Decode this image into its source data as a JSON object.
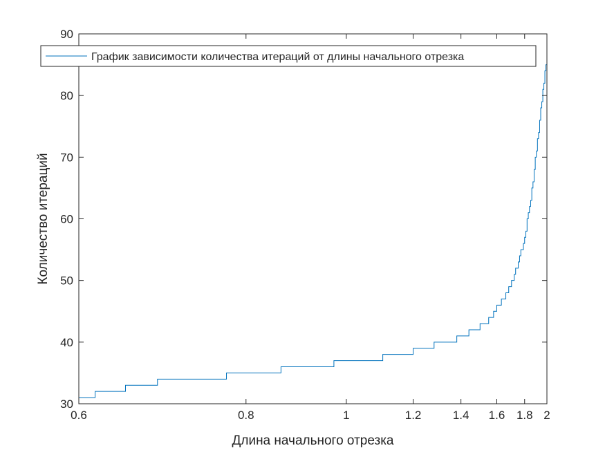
{
  "chart_data": {
    "type": "line",
    "xlabel": "Длина начального отрезка",
    "ylabel": "Количество итераций",
    "xlim": [
      0.6,
      2
    ],
    "ylim": [
      30,
      90
    ],
    "x_scale": "reciprocal",
    "xticks": [
      0.6,
      0.8,
      1,
      1.2,
      1.4,
      1.6,
      1.8,
      2
    ],
    "xtick_labels": [
      "0.6",
      "0.8",
      "1",
      "1.2",
      "1.4",
      "1.6",
      "1.8",
      "2"
    ],
    "yticks": [
      30,
      40,
      50,
      60,
      70,
      80,
      90
    ],
    "ytick_labels": [
      "30",
      "40",
      "50",
      "60",
      "70",
      "80",
      "90"
    ],
    "grid": false,
    "legend_position": "top",
    "series": [
      {
        "name": "График зависимости количества итераций от длины начального отрезка",
        "color": "#0072BD",
        "x": [
          0.6,
          0.605,
          0.61,
          0.615,
          0.62,
          0.63,
          0.64,
          0.645,
          0.65,
          0.66,
          0.67,
          0.68,
          0.69,
          0.7,
          0.72,
          0.74,
          0.76,
          0.77,
          0.78,
          0.8,
          0.82,
          0.84,
          0.85,
          0.86,
          0.88,
          0.9,
          0.92,
          0.94,
          0.96,
          0.97,
          0.98,
          1.0,
          1.03,
          1.06,
          1.08,
          1.1,
          1.12,
          1.15,
          1.18,
          1.19,
          1.2,
          1.22,
          1.25,
          1.27,
          1.28,
          1.3,
          1.32,
          1.35,
          1.37,
          1.38,
          1.4,
          1.42,
          1.44,
          1.45,
          1.46,
          1.48,
          1.5,
          1.52,
          1.53,
          1.54,
          1.55,
          1.56,
          1.57,
          1.58,
          1.59,
          1.6,
          1.61,
          1.62,
          1.63,
          1.64,
          1.65,
          1.66,
          1.67,
          1.68,
          1.69,
          1.7,
          1.71,
          1.72,
          1.73,
          1.74,
          1.75,
          1.76,
          1.77,
          1.78,
          1.79,
          1.8,
          1.81,
          1.82,
          1.83,
          1.84,
          1.85,
          1.86,
          1.87,
          1.88,
          1.89,
          1.9,
          1.91,
          1.92,
          1.93,
          1.94,
          1.95,
          1.96,
          1.97,
          1.98,
          1.99,
          2.0
        ],
        "y": [
          31,
          31,
          31,
          32,
          32,
          32,
          32,
          33,
          33,
          33,
          33,
          34,
          34,
          34,
          34,
          34,
          34,
          35,
          35,
          35,
          35,
          35,
          35,
          36,
          36,
          36,
          36,
          36,
          36,
          37,
          37,
          37,
          37,
          37,
          37,
          38,
          38,
          38,
          38,
          38,
          39,
          39,
          39,
          39,
          40,
          40,
          40,
          40,
          40,
          41,
          41,
          41,
          42,
          42,
          42,
          42,
          43,
          43,
          43,
          43,
          44,
          44,
          44,
          45,
          45,
          46,
          46,
          46,
          47,
          47,
          47,
          48,
          48,
          49,
          49,
          50,
          50,
          51,
          52,
          52,
          53,
          54,
          55,
          55,
          56,
          57,
          58,
          60,
          61,
          62,
          63,
          65,
          66,
          68,
          70,
          71,
          73,
          74,
          76,
          78,
          79,
          81,
          82,
          84,
          85,
          85
        ]
      }
    ]
  }
}
